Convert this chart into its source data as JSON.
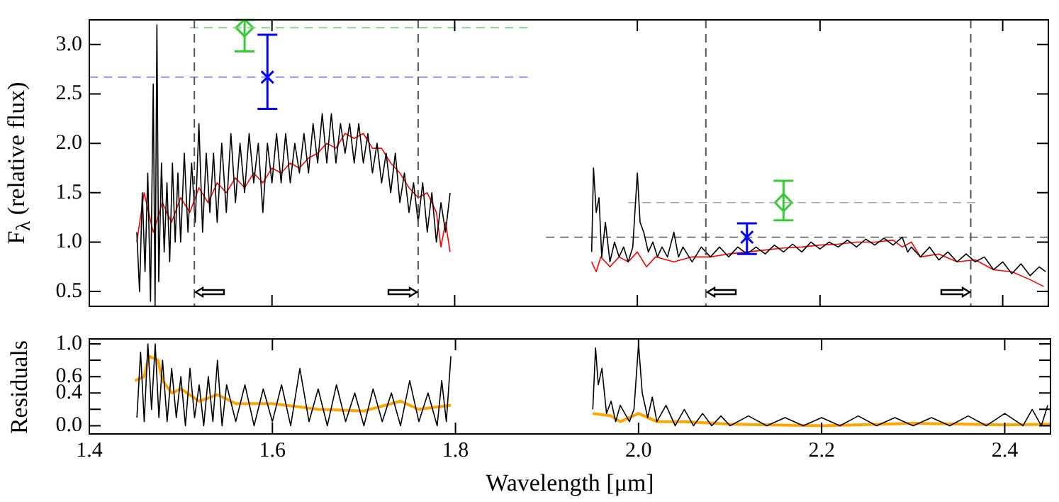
{
  "chart_data": [
    {
      "type": "line",
      "ylabel": "F$_{λ}$ (relative flux)",
      "xlim": [
        1.4,
        2.45
      ],
      "xticks": [
        1.4,
        1.6,
        1.8,
        2.0,
        2.2,
        2.4
      ],
      "ylim": [
        0.35,
        3.25
      ],
      "yticks": [
        0.5,
        {
          "value": 1.0,
          "label": "1.0"
        },
        1.5,
        {
          "value": 2.0,
          "label": "2.0"
        },
        2.5,
        {
          "value": 3.0,
          "label": "3.0"
        }
      ],
      "tick_labels": "y",
      "grid": false,
      "legend": false,
      "ref_lines": [
        {
          "axis": "x",
          "value": 1.515,
          "color": "#555555",
          "line_style": "dashed"
        },
        {
          "axis": "x",
          "value": 1.76,
          "color": "#555555",
          "line_style": "dashed"
        },
        {
          "axis": "x",
          "value": 2.075,
          "color": "#555555",
          "line_style": "dashed"
        },
        {
          "axis": "x",
          "value": 2.365,
          "color": "#555555",
          "line_style": "dashed"
        }
      ],
      "series": [
        {
          "type": "line",
          "color": "#000000",
          "marker": "none",
          "x": [
            1.452,
            1.455,
            1.458,
            1.461,
            1.464,
            1.467,
            1.47,
            1.472,
            1.474,
            1.476,
            1.479,
            1.482,
            1.485,
            1.488,
            1.491,
            1.494,
            1.497,
            1.5,
            1.504,
            1.508,
            1.512,
            1.516,
            1.52,
            1.524,
            1.528,
            1.532,
            1.536,
            1.54,
            1.545,
            1.55,
            1.555,
            1.56,
            1.565,
            1.57,
            1.575,
            1.58,
            1.585,
            1.59,
            1.595,
            1.6,
            1.605,
            1.61,
            1.615,
            1.62,
            1.625,
            1.63,
            1.635,
            1.64,
            1.645,
            1.65,
            1.655,
            1.66,
            1.665,
            1.67,
            1.675,
            1.68,
            1.685,
            1.69,
            1.695,
            1.7,
            1.705,
            1.71,
            1.715,
            1.72,
            1.725,
            1.73,
            1.735,
            1.74,
            1.745,
            1.75,
            1.755,
            1.76,
            1.765,
            1.77,
            1.775,
            1.78,
            1.785,
            1.79,
            1.795,
            1.87,
            1.95,
            1.952,
            1.955,
            1.958,
            1.961,
            1.965,
            1.97,
            1.975,
            1.98,
            1.985,
            1.99,
            1.995,
            2.0,
            2.003,
            2.007,
            2.012,
            2.017,
            2.022,
            2.027,
            2.033,
            2.04,
            2.045,
            2.05,
            2.06,
            2.07,
            2.08,
            2.09,
            2.1,
            2.11,
            2.12,
            2.13,
            2.14,
            2.15,
            2.16,
            2.17,
            2.18,
            2.19,
            2.2,
            2.21,
            2.22,
            2.23,
            2.24,
            2.25,
            2.26,
            2.27,
            2.28,
            2.29,
            2.296,
            2.3,
            2.31,
            2.32,
            2.33,
            2.34,
            2.35,
            2.36,
            2.37,
            2.38,
            2.39,
            2.4,
            2.41,
            2.42,
            2.43,
            2.44,
            2.447
          ],
          "values": [
            1.1,
            0.5,
            1.5,
            0.7,
            1.7,
            0.4,
            2.6,
            0.35,
            3.2,
            0.6,
            1.8,
            0.9,
            1.6,
            0.8,
            1.8,
            1.0,
            1.7,
            1.0,
            1.9,
            1.1,
            1.8,
            1.2,
            2.2,
            1.1,
            1.9,
            1.3,
            1.9,
            1.2,
            2.0,
            1.3,
            2.1,
            1.4,
            2.0,
            1.5,
            2.1,
            1.6,
            2.0,
            1.3,
            2.0,
            1.6,
            2.1,
            1.6,
            2.1,
            1.6,
            2.0,
            1.7,
            2.1,
            1.7,
            2.2,
            1.8,
            2.3,
            1.8,
            2.3,
            1.8,
            2.2,
            1.9,
            2.2,
            1.8,
            2.2,
            1.8,
            2.1,
            1.7,
            2.0,
            1.6,
            1.9,
            1.5,
            1.9,
            1.4,
            1.7,
            1.3,
            1.6,
            1.2,
            1.6,
            1.1,
            1.5,
            1.0,
            1.4,
            1.1,
            1.5,
            null,
            0.9,
            1.75,
            1.3,
            1.45,
            0.85,
            1.2,
            0.8,
            1.0,
            0.85,
            0.95,
            0.8,
            0.95,
            1.7,
            1.2,
            1.1,
            0.9,
            1.0,
            0.85,
            0.95,
            0.85,
            1.1,
            0.85,
            0.95,
            0.8,
            0.95,
            0.85,
            0.95,
            0.85,
            0.95,
            0.88,
            0.95,
            0.88,
            0.97,
            0.9,
            0.98,
            0.9,
            1.0,
            0.93,
            1.0,
            0.95,
            1.02,
            0.95,
            1.03,
            0.97,
            1.04,
            0.97,
            1.05,
            0.9,
            0.95,
            0.85,
            0.95,
            0.82,
            0.9,
            0.8,
            0.88,
            0.8,
            0.85,
            0.72,
            0.8,
            0.68,
            0.78,
            0.66,
            0.75,
            0.7
          ]
        },
        {
          "type": "line",
          "color": "#ff0000",
          "marker": "none",
          "x": [
            1.452,
            1.46,
            1.47,
            1.48,
            1.49,
            1.5,
            1.51,
            1.52,
            1.53,
            1.54,
            1.55,
            1.56,
            1.57,
            1.58,
            1.59,
            1.6,
            1.61,
            1.62,
            1.63,
            1.64,
            1.65,
            1.66,
            1.67,
            1.68,
            1.69,
            1.7,
            1.71,
            1.72,
            1.73,
            1.74,
            1.75,
            1.76,
            1.77,
            1.78,
            1.785,
            1.79,
            1.795,
            1.87,
            1.95,
            1.955,
            1.96,
            1.97,
            1.98,
            1.99,
            2.0,
            2.01,
            2.02,
            2.04,
            2.06,
            2.08,
            2.1,
            2.12,
            2.14,
            2.16,
            2.18,
            2.2,
            2.22,
            2.24,
            2.26,
            2.28,
            2.29,
            2.3,
            2.31,
            2.33,
            2.35,
            2.37,
            2.39,
            2.41,
            2.43,
            2.445
          ],
          "values": [
            1.0,
            1.5,
            1.1,
            1.4,
            1.2,
            1.45,
            1.3,
            1.55,
            1.4,
            1.6,
            1.5,
            1.65,
            1.55,
            1.7,
            1.6,
            1.75,
            1.7,
            1.8,
            1.75,
            1.85,
            1.9,
            2.0,
            1.95,
            2.1,
            2.05,
            2.1,
            1.95,
            1.95,
            1.8,
            1.7,
            1.55,
            1.45,
            1.5,
            1.3,
            0.95,
            1.2,
            0.9,
            null,
            0.8,
            0.7,
            0.85,
            0.75,
            0.85,
            0.8,
            0.9,
            0.75,
            0.85,
            0.8,
            0.85,
            0.85,
            0.88,
            0.9,
            0.92,
            0.94,
            0.95,
            0.97,
            0.98,
            1.0,
            1.0,
            1.02,
            0.95,
            1.0,
            0.85,
            0.88,
            0.8,
            0.82,
            0.72,
            0.7,
            0.62,
            0.55
          ]
        },
        {
          "type": "line",
          "color": "#80d080",
          "marker": "none",
          "line_style": "dashed",
          "x": [
            1.51,
            1.88
          ],
          "values": [
            3.17,
            3.17
          ]
        },
        {
          "type": "line",
          "color": "#6a6aff",
          "marker": "none",
          "line_style": "dashed",
          "x": [
            1.4,
            1.88
          ],
          "values": [
            2.67,
            2.67
          ]
        },
        {
          "type": "line",
          "color": "#a8a8a8",
          "marker": "none",
          "line_style": "dashed",
          "x": [
            1.99,
            2.37
          ],
          "values": [
            1.4,
            1.4
          ]
        },
        {
          "type": "line",
          "color": "#555555",
          "marker": "none",
          "line_style": "dashed",
          "x": [
            1.9,
            2.45
          ],
          "values": [
            1.05,
            1.05
          ]
        },
        {
          "type": "scatter",
          "color": "#33cc33",
          "marker": "diamond",
          "x": [
            1.57,
            2.16
          ],
          "values": [
            3.17,
            1.4
          ],
          "errors": [
            [
              2.93,
              3.25
            ],
            [
              1.22,
              1.62
            ]
          ]
        },
        {
          "type": "scatter",
          "color": "#0000ff",
          "marker": "cross",
          "x": [
            1.595,
            2.12
          ],
          "values": [
            2.67,
            1.05
          ],
          "errors": [
            [
              2.35,
              3.1
            ],
            [
              0.88,
              1.19
            ]
          ]
        }
      ]
    },
    {
      "type": "line",
      "xlabel": "Wavelength [μm]",
      "ylabel": "Residuals",
      "xlim": [
        1.4,
        2.45
      ],
      "xticks": [
        1.4,
        1.6,
        1.8,
        {
          "value": 2.0,
          "label": "2.0"
        },
        2.2,
        2.4
      ],
      "ylim": [
        -0.1,
        1.06
      ],
      "yticks": [
        {
          "value": 0.0,
          "label": "0.0"
        },
        {
          "value": 0.2,
          "label": null
        },
        0.4,
        0.6,
        {
          "value": 0.8,
          "label": null
        },
        {
          "value": 1.0,
          "label": "1.0"
        }
      ],
      "grid": false,
      "legend": false,
      "series": [
        {
          "type": "line",
          "color": "#000000",
          "marker": "none",
          "x": [
            1.452,
            1.456,
            1.46,
            1.464,
            1.468,
            1.472,
            1.476,
            1.48,
            1.485,
            1.49,
            1.495,
            1.5,
            1.505,
            1.51,
            1.515,
            1.52,
            1.525,
            1.53,
            1.535,
            1.54,
            1.545,
            1.55,
            1.56,
            1.57,
            1.58,
            1.59,
            1.6,
            1.61,
            1.62,
            1.63,
            1.64,
            1.65,
            1.66,
            1.67,
            1.68,
            1.69,
            1.7,
            1.71,
            1.72,
            1.73,
            1.74,
            1.75,
            1.76,
            1.77,
            1.78,
            1.785,
            1.79,
            1.795,
            1.87,
            1.95,
            1.953,
            1.956,
            1.96,
            1.965,
            1.97,
            1.975,
            1.98,
            1.99,
            1.995,
            2.0,
            2.004,
            2.01,
            2.015,
            2.02,
            2.03,
            2.04,
            2.05,
            2.06,
            2.07,
            2.08,
            2.09,
            2.1,
            2.12,
            2.14,
            2.16,
            2.18,
            2.2,
            2.22,
            2.24,
            2.26,
            2.28,
            2.3,
            2.32,
            2.34,
            2.36,
            2.38,
            2.4,
            2.42,
            2.43,
            2.44,
            2.447
          ],
          "values": [
            0.1,
            0.9,
            0.05,
            1.0,
            0.2,
            1.0,
            0.1,
            0.8,
            0.05,
            0.7,
            0.1,
            0.6,
            0.0,
            0.7,
            0.1,
            0.5,
            0.0,
            0.6,
            0.05,
            0.8,
            0.0,
            0.5,
            0.05,
            0.5,
            0.0,
            0.45,
            0.05,
            0.5,
            0.0,
            0.7,
            0.05,
            0.45,
            0.0,
            0.5,
            0.05,
            0.4,
            0.0,
            0.45,
            0.05,
            0.4,
            0.0,
            0.55,
            0.05,
            0.4,
            0.0,
            0.55,
            0.05,
            0.85,
            null,
            0.2,
            0.95,
            0.5,
            0.7,
            0.15,
            0.3,
            0.05,
            0.25,
            0.05,
            0.2,
            1.0,
            0.4,
            0.1,
            0.35,
            0.05,
            0.25,
            0.0,
            0.2,
            0.0,
            0.15,
            0.0,
            0.12,
            0.0,
            0.12,
            0.0,
            0.1,
            0.0,
            0.1,
            0.0,
            0.12,
            0.0,
            0.1,
            0.0,
            0.1,
            0.0,
            0.12,
            0.0,
            0.15,
            0.0,
            0.2,
            0.0,
            0.25
          ]
        },
        {
          "type": "line",
          "color": "#ffa500",
          "marker": "none",
          "x": [
            1.45,
            1.46,
            1.465,
            1.475,
            1.48,
            1.49,
            1.5,
            1.52,
            1.54,
            1.56,
            1.6,
            1.65,
            1.7,
            1.74,
            1.76,
            1.795,
            1.87,
            1.95,
            1.97,
            1.98,
            2.0,
            2.02,
            2.05,
            2.1,
            2.2,
            2.3,
            2.4,
            2.45
          ],
          "values": [
            0.55,
            0.6,
            0.85,
            0.8,
            0.55,
            0.4,
            0.45,
            0.3,
            0.38,
            0.27,
            0.27,
            0.2,
            0.18,
            0.3,
            0.2,
            0.25,
            null,
            0.15,
            0.12,
            0.05,
            0.15,
            0.05,
            0.05,
            0.02,
            0.0,
            0.03,
            0.01,
            0.02
          ]
        }
      ]
    }
  ]
}
